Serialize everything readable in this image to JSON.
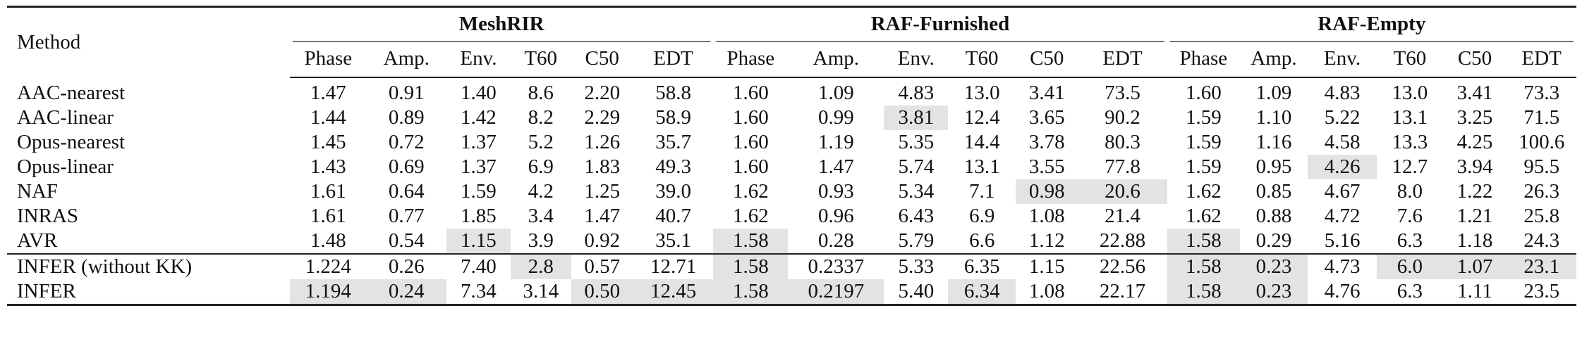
{
  "header": {
    "method_label": "Method",
    "groups": [
      "MeshRIR",
      "RAF-Furnished",
      "RAF-Empty"
    ],
    "metrics": [
      "Phase",
      "Amp.",
      "Env.",
      "T60",
      "C50",
      "EDT"
    ]
  },
  "rows": [
    {
      "name": "AAC-nearest",
      "values": [
        "1.47",
        "0.91",
        "1.40",
        "8.6",
        "2.20",
        "58.8",
        "1.60",
        "1.09",
        "4.83",
        "13.0",
        "3.41",
        "73.5",
        "1.60",
        "1.09",
        "4.83",
        "13.0",
        "3.41",
        "73.3"
      ]
    },
    {
      "name": "AAC-linear",
      "values": [
        "1.44",
        "0.89",
        "1.42",
        "8.2",
        "2.29",
        "58.9",
        "1.60",
        "0.99",
        "3.81",
        "12.4",
        "3.65",
        "90.2",
        "1.59",
        "1.10",
        "5.22",
        "13.1",
        "3.25",
        "71.5"
      ]
    },
    {
      "name": "Opus-nearest",
      "values": [
        "1.45",
        "0.72",
        "1.37",
        "5.2",
        "1.26",
        "35.7",
        "1.60",
        "1.19",
        "5.35",
        "14.4",
        "3.78",
        "80.3",
        "1.59",
        "1.16",
        "4.58",
        "13.3",
        "4.25",
        "100.6"
      ]
    },
    {
      "name": "Opus-linear",
      "values": [
        "1.43",
        "0.69",
        "1.37",
        "6.9",
        "1.83",
        "49.3",
        "1.60",
        "1.47",
        "5.74",
        "13.1",
        "3.55",
        "77.8",
        "1.59",
        "0.95",
        "4.26",
        "12.7",
        "3.94",
        "95.5"
      ]
    },
    {
      "name": "NAF",
      "values": [
        "1.61",
        "0.64",
        "1.59",
        "4.2",
        "1.25",
        "39.0",
        "1.62",
        "0.93",
        "5.34",
        "7.1",
        "0.98",
        "20.6",
        "1.62",
        "0.85",
        "4.67",
        "8.0",
        "1.22",
        "26.3"
      ]
    },
    {
      "name": "INRAS",
      "values": [
        "1.61",
        "0.77",
        "1.85",
        "3.4",
        "1.47",
        "40.7",
        "1.62",
        "0.96",
        "6.43",
        "6.9",
        "1.08",
        "21.4",
        "1.62",
        "0.88",
        "4.72",
        "7.6",
        "1.21",
        "25.8"
      ]
    },
    {
      "name": "AVR",
      "values": [
        "1.48",
        "0.54",
        "1.15",
        "3.9",
        "0.92",
        "35.1",
        "1.58",
        "0.28",
        "5.79",
        "6.6",
        "1.12",
        "22.88",
        "1.58",
        "0.29",
        "5.16",
        "6.3",
        "1.18",
        "24.3"
      ]
    },
    {
      "name": "INFER (without KK)",
      "values": [
        "1.224",
        "0.26",
        "7.40",
        "2.8",
        "0.57",
        "12.71",
        "1.58",
        "0.2337",
        "5.33",
        "6.35",
        "1.15",
        "22.56",
        "1.58",
        "0.23",
        "4.73",
        "6.0",
        "1.07",
        "23.1"
      ]
    },
    {
      "name": "INFER",
      "values": [
        "1.194",
        "0.24",
        "7.34",
        "3.14",
        "0.50",
        "12.45",
        "1.58",
        "0.2197",
        "5.40",
        "6.34",
        "1.08",
        "22.17",
        "1.58",
        "0.23",
        "4.76",
        "6.3",
        "1.11",
        "23.5"
      ]
    }
  ],
  "highlights": [
    [],
    [
      8
    ],
    [],
    [
      14
    ],
    [
      10,
      11
    ],
    [],
    [
      2,
      6,
      12
    ],
    [
      3,
      6,
      12,
      13,
      15,
      16,
      17
    ],
    [
      0,
      1,
      4,
      5,
      6,
      7,
      9,
      12,
      13
    ]
  ],
  "colors": {
    "highlight": "#e3e3e3",
    "rule": "#222222"
  }
}
